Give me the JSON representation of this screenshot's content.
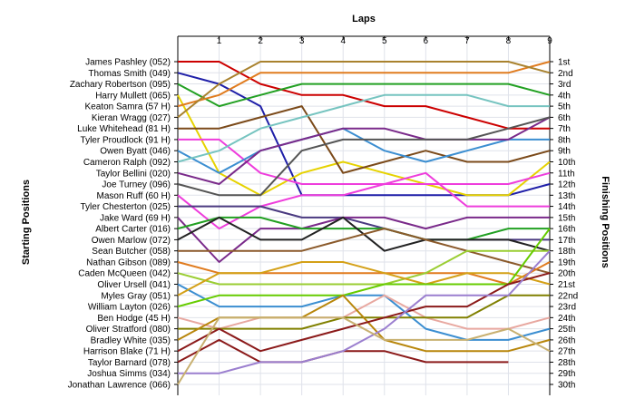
{
  "chart_data": {
    "type": "line",
    "title": "",
    "xlabel": "Laps",
    "ylabel_left": "Starting Positions",
    "ylabel_right": "Finishing Positions",
    "x_ticks": [
      "1",
      "2",
      "3",
      "4",
      "5",
      "6",
      "7",
      "8",
      "9"
    ],
    "xlim": [
      0,
      9
    ],
    "ylim": [
      1,
      30
    ],
    "y_reversed": true,
    "grid": true,
    "start_labels": [
      "James Pashley (052)",
      "Thomas Smith (049)",
      "Zachary Robertson (095)",
      "Harry Mullett (065)",
      "Keaton Samra (57 H)",
      "Kieran Wragg (027)",
      "Luke Whitehead (81 H)",
      "Tyler Proudlock (91 H)",
      "Owen Byatt (046)",
      "Cameron Ralph (092)",
      "Taylor Bellini (020)",
      "Joe Turney (096)",
      "Mason Ruff (60 H)",
      "Tyler Chesterton (025)",
      "Jake Ward (69 H)",
      "Albert Carter (016)",
      "Owen Marlow (072)",
      "Sean Butcher (058)",
      "Nathan Gibson (089)",
      "Caden McQueen (042)",
      "Oliver Ursell (041)",
      "Myles Gray (051)",
      "William Layton (026)",
      "Ben Hodge (45 H)",
      "Oliver Stratford (080)",
      "Bradley White (035)",
      "Harrison Blake (71 H)",
      "Taylor Barnard (078)",
      "Joshua Simms (034)",
      "Jonathan Lawrence (066)"
    ],
    "finish_labels": [
      "1st",
      "2nd",
      "3rd",
      "4th",
      "5th",
      "6th",
      "7th",
      "8th",
      "9th",
      "10th",
      "11th",
      "12th",
      "13th",
      "14th",
      "15th",
      "16th",
      "17th",
      "18th",
      "19th",
      "20th",
      "21st",
      "22nd",
      "23rd",
      "24th",
      "25th",
      "26th",
      "27th",
      "28th",
      "29th",
      "30th"
    ],
    "series": [
      {
        "color": "#cc0000",
        "values": [
          1,
          1,
          3,
          4,
          4,
          5,
          5,
          6,
          7,
          7
        ]
      },
      {
        "color": "#1f1fa8",
        "values": [
          2,
          3,
          5,
          13,
          13,
          13,
          13,
          13,
          13,
          12
        ]
      },
      {
        "color": "#22a022",
        "values": [
          3,
          5,
          4,
          3,
          3,
          3,
          3,
          3,
          3,
          4
        ]
      },
      {
        "color": "#e6d200",
        "values": [
          4,
          11,
          13,
          11,
          10,
          11,
          12,
          13,
          13,
          10
        ]
      },
      {
        "color": "#e07b1e",
        "values": [
          5,
          4,
          2,
          2,
          2,
          2,
          2,
          2,
          2,
          1
        ]
      },
      {
        "color": "#a9822e",
        "values": [
          6,
          3,
          1,
          1,
          1,
          1,
          1,
          1,
          1,
          2
        ]
      },
      {
        "color": "#7b4a1a",
        "values": [
          7,
          7,
          6,
          5,
          11,
          10,
          9,
          10,
          10,
          9
        ]
      },
      {
        "color": "#ee3ddc",
        "values": [
          8,
          8,
          11,
          12,
          12,
          12,
          11,
          14,
          14,
          14
        ]
      },
      {
        "color": "#3b8ed1",
        "values": [
          9,
          11,
          9,
          8,
          7,
          9,
          10,
          9,
          8,
          8
        ]
      },
      {
        "color": "#76c4c0",
        "values": [
          10,
          9,
          7,
          6,
          5,
          4,
          4,
          4,
          5,
          5
        ]
      },
      {
        "color": "#7a2a8a",
        "values": [
          11,
          12,
          9,
          8,
          7,
          7,
          8,
          8,
          8,
          6
        ]
      },
      {
        "color": "#555555",
        "values": [
          12,
          13,
          13,
          9,
          8,
          8,
          8,
          8,
          7,
          6
        ]
      },
      {
        "color": "#ee3ddc",
        "values": [
          13,
          16,
          14,
          13,
          13,
          12,
          12,
          12,
          12,
          11
        ]
      },
      {
        "color": "#4a3a80",
        "values": [
          14,
          14,
          14,
          15,
          15,
          16,
          17,
          17,
          17,
          17
        ]
      },
      {
        "color": "#7a2a8a",
        "values": [
          15,
          19,
          16,
          16,
          15,
          15,
          16,
          15,
          15,
          15
        ]
      },
      {
        "color": "#22a022",
        "values": [
          16,
          15,
          15,
          16,
          16,
          16,
          17,
          17,
          16,
          16
        ]
      },
      {
        "color": "#222222",
        "values": [
          17,
          15,
          17,
          17,
          15,
          18,
          17,
          17,
          17,
          18
        ]
      },
      {
        "color": "#8b5a2b",
        "values": [
          18,
          18,
          18,
          18,
          17,
          16,
          17,
          18,
          19,
          20
        ]
      },
      {
        "color": "#e07b1e",
        "values": [
          19,
          20,
          20,
          20,
          20,
          20,
          20,
          20,
          21,
          19
        ]
      },
      {
        "color": "#9acd32",
        "values": [
          20,
          21,
          21,
          21,
          21,
          21,
          20,
          18,
          18,
          18
        ]
      },
      {
        "color": "#3b8ed1",
        "values": [
          21,
          23,
          23,
          23,
          22,
          22,
          25,
          26,
          26,
          25
        ]
      },
      {
        "color": "#d4a017",
        "values": [
          22,
          20,
          20,
          19,
          19,
          20,
          21,
          20,
          20,
          21
        ]
      },
      {
        "color": "#66cc00",
        "values": [
          23,
          22,
          22,
          22,
          22,
          21,
          21,
          21,
          21,
          16
        ]
      },
      {
        "color": "#e8a8a0",
        "values": [
          24,
          25,
          24,
          24,
          24,
          22,
          24,
          25,
          25,
          24
        ]
      },
      {
        "color": "#808000",
        "values": [
          25,
          25,
          25,
          25,
          24,
          24,
          24,
          24,
          22,
          22
        ]
      },
      {
        "color": "#b8860b",
        "values": [
          26,
          24,
          24,
          24,
          22,
          26,
          27,
          27,
          27,
          26
        ]
      },
      {
        "color": "#8b1a1a",
        "values": [
          27,
          25,
          27,
          26,
          25,
          24,
          23,
          23,
          21,
          20
        ]
      },
      {
        "color": "#8b1a1a",
        "values": [
          28,
          26,
          28,
          28,
          27,
          27,
          28,
          28,
          28
        ]
      },
      {
        "color": "#9b7fcf",
        "values": [
          29,
          29,
          28,
          28,
          27,
          25,
          22,
          22,
          22,
          18
        ]
      },
      {
        "color": "#c8b070",
        "values": [
          30,
          24,
          24,
          24,
          24,
          26,
          26,
          26,
          25,
          27
        ]
      }
    ]
  }
}
